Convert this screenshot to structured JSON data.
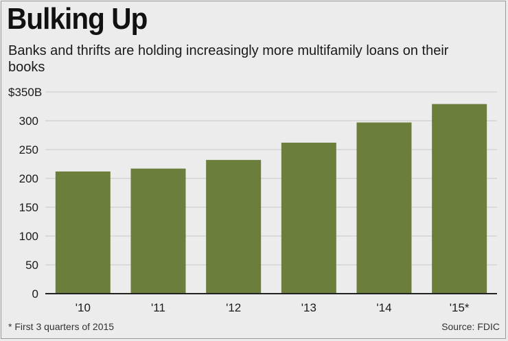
{
  "header": {
    "title": "Bulking Up",
    "subtitle": "Banks and thrifts are holding increasingly more multifamily loans on their books"
  },
  "footer": {
    "footnote": "* First 3 quarters of 2015",
    "source": "Source: FDIC"
  },
  "colors": {
    "bar": "#6b7e3b",
    "grid": "#c8c8c8",
    "axis": "#222222",
    "background": "#ececec"
  },
  "chart_data": {
    "type": "bar",
    "categories": [
      "'10",
      "'11",
      "'12",
      "'13",
      "'14",
      "'15*"
    ],
    "values": [
      212,
      217,
      232,
      262,
      297,
      329
    ],
    "ylim": [
      0,
      350
    ],
    "yticks": [
      0,
      50,
      100,
      150,
      200,
      250,
      300,
      350
    ],
    "ytick_labels": [
      "0",
      "50",
      "100",
      "150",
      "200",
      "250",
      "300",
      "$350B"
    ],
    "grid": true
  }
}
